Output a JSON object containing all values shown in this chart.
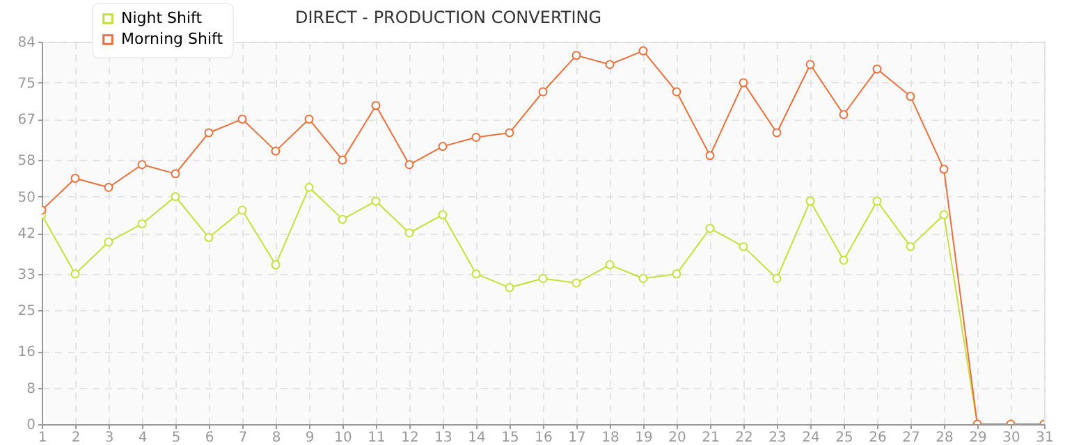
{
  "chart_data": {
    "type": "line",
    "title": "DIRECT - PRODUCTION CONVERTING",
    "x": [
      1,
      2,
      3,
      4,
      5,
      6,
      7,
      8,
      9,
      10,
      11,
      12,
      13,
      14,
      15,
      16,
      17,
      18,
      19,
      20,
      21,
      22,
      23,
      24,
      25,
      26,
      27,
      28,
      29,
      30,
      31
    ],
    "series": [
      {
        "name": "Night Shift",
        "color": "#c5e03a",
        "values": [
          46,
          33,
          40,
          44,
          50,
          41,
          47,
          35,
          52,
          45,
          49,
          42,
          46,
          33,
          30,
          32,
          31,
          35,
          32,
          33,
          43,
          39,
          32,
          49,
          36,
          49,
          39,
          46,
          0,
          0,
          0
        ]
      },
      {
        "name": "Morning Shift",
        "color": "#e8703a",
        "values": [
          47,
          54,
          52,
          57,
          55,
          64,
          67,
          60,
          67,
          58,
          70,
          57,
          61,
          63,
          64,
          73,
          81,
          79,
          82,
          73,
          59,
          75,
          64,
          79,
          68,
          78,
          72,
          56,
          0,
          0,
          0
        ]
      }
    ],
    "xlim": [
      1,
      31
    ],
    "xticks": [
      1,
      2,
      3,
      4,
      5,
      6,
      7,
      8,
      9,
      10,
      11,
      12,
      13,
      14,
      15,
      16,
      17,
      18,
      19,
      20,
      21,
      22,
      23,
      24,
      25,
      26,
      27,
      28,
      29,
      30,
      31
    ],
    "ylim": [
      0,
      84
    ],
    "yticks": [
      0,
      8,
      16,
      25,
      33,
      42,
      50,
      58,
      67,
      75,
      84
    ],
    "grid": true,
    "legend": "top left",
    "marker": "circle",
    "line_style": "solid"
  }
}
